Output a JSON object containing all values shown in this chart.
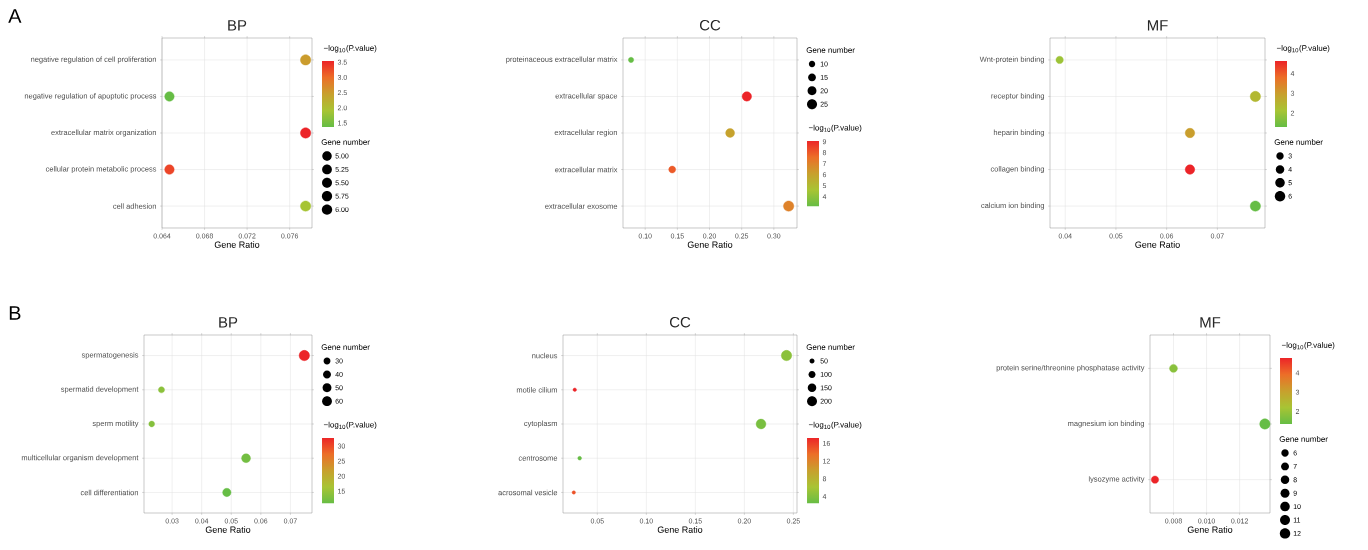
{
  "chart_data": [
    {
      "type": "bubble",
      "title": "BP",
      "xlabel": "Gene Ratio",
      "annotations": [
        "A"
      ],
      "orientation": "horizontal",
      "grid": true,
      "legend_title": "Gene number",
      "clabel": "−log$_{10}$(P.value)",
      "categories": [
        "negative regulation of cell proliferation",
        "negative regulation of apoptotic process",
        "extracellular matrix organization",
        "cellular protein metabolic process",
        "cell adhesion"
      ],
      "values": [
        0.0775,
        0.0647,
        0.0775,
        0.0647,
        0.0775
      ],
      "sizes": [
        6,
        5,
        6,
        5,
        6
      ],
      "cvalues": [
        2.5,
        1.37,
        3.54,
        3.3,
        1.9
      ],
      "clim": [
        1.37,
        3.54
      ],
      "cticks": [
        1.5,
        {
          "value": 2,
          "label": "2.0"
        },
        2.5,
        {
          "value": 3,
          "label": "3.0"
        },
        3.5
      ],
      "xlim": [
        0.064,
        0.0781
      ],
      "xticks": [
        0.064,
        0.068,
        0.072,
        0.076
      ],
      "size_legend": [
        {
          "value": 5,
          "label": "5.00"
        },
        5.25,
        {
          "value": 5.5,
          "label": "5.50"
        },
        5.75,
        {
          "value": 6,
          "label": "6.00"
        }
      ]
    },
    {
      "type": "bubble",
      "title": "CC",
      "xlabel": "Gene Ratio",
      "orientation": "horizontal",
      "grid": true,
      "legend_title": "Gene number",
      "clabel": "−log$_{10}$(P.value)",
      "categories": [
        "proteinaceous extracellular matrix",
        "extracellular space",
        "extracellular region",
        "extracellular matrix",
        "extracellular exosome"
      ],
      "values": [
        0.078,
        0.258,
        0.232,
        0.142,
        0.323
      ],
      "sizes": [
        7,
        22,
        20,
        12,
        27
      ],
      "cvalues": [
        3.1,
        9.1,
        6.0,
        8.0,
        7.0
      ],
      "clim": [
        3.1,
        9.1
      ],
      "cticks": [
        4,
        5,
        6,
        7,
        8,
        9
      ],
      "xlim": [
        0.0655,
        0.336
      ],
      "xticks": [
        {
          "value": 0.1,
          "label": "0.10"
        },
        0.15,
        {
          "value": 0.2,
          "label": "0.20"
        },
        0.25,
        {
          "value": 0.3,
          "label": "0.30"
        }
      ],
      "size_legend": [
        10,
        15,
        20,
        25
      ]
    },
    {
      "type": "bubble",
      "title": "MF",
      "xlabel": "Gene Ratio",
      "orientation": "horizontal",
      "grid": true,
      "legend_title": "Gene number",
      "clabel": "−log$_{10}$(P.value)",
      "categories": [
        "Wnt-protein binding",
        "receptor binding",
        "heparin binding",
        "collagen binding",
        "calcium ion binding"
      ],
      "values": [
        0.0389,
        0.0775,
        0.0646,
        0.0646,
        0.0775
      ],
      "sizes": [
        3,
        6,
        5,
        5,
        6
      ],
      "cvalues": [
        2.0,
        2.4,
        3.0,
        4.63,
        1.3
      ],
      "clim": [
        1.3,
        4.63
      ],
      "cticks": [
        2,
        3,
        4
      ],
      "xlim": [
        0.037,
        0.0794
      ],
      "xticks": [
        0.04,
        0.05,
        0.06,
        0.07
      ],
      "size_legend": [
        3,
        4,
        5,
        6
      ]
    },
    {
      "type": "bubble",
      "title": "BP",
      "xlabel": "Gene Ratio",
      "annotations": [
        "B"
      ],
      "orientation": "horizontal",
      "grid": true,
      "legend_title": "Gene number",
      "clabel": "−log$_{10}$(P.value)",
      "categories": [
        "spermatogenesis",
        "spermatid development",
        "sperm motility",
        "multicellular organism development",
        "cell differentiation"
      ],
      "values": [
        0.0747,
        0.0264,
        0.0231,
        0.055,
        0.0485
      ],
      "sizes": [
        68,
        24,
        21,
        50,
        44
      ],
      "cvalues": [
        32.8,
        14,
        13.5,
        12,
        10.9
      ],
      "clim": [
        10.9,
        32.8
      ],
      "cticks": [
        15,
        20,
        25,
        30
      ],
      "xlim": [
        0.0205,
        0.0773
      ],
      "xticks": [
        0.03,
        0.04,
        0.05,
        0.06,
        0.07
      ],
      "size_legend": [
        30,
        40,
        50,
        60
      ]
    },
    {
      "type": "bubble",
      "title": "CC",
      "xlabel": "Gene Ratio",
      "orientation": "horizontal",
      "grid": true,
      "legend_title": "Gene number",
      "clabel": "−log$_{10}$(P.value)",
      "categories": [
        "nucleus",
        "motile cilium",
        "cytoplasm",
        "centrosome",
        "acrosomal vesicle"
      ],
      "values": [
        0.243,
        0.027,
        0.217,
        0.032,
        0.026
      ],
      "sizes": [
        221,
        25,
        197,
        29,
        24
      ],
      "cvalues": [
        4.5,
        17.3,
        3.5,
        2.4,
        15
      ],
      "clim": [
        2.4,
        17.3
      ],
      "cticks": [
        4,
        8,
        12,
        16
      ],
      "xlim": [
        0.015,
        0.2537
      ],
      "xticks": [
        0.05,
        {
          "value": 0.1,
          "label": "0.10"
        },
        0.15,
        {
          "value": 0.2,
          "label": "0.20"
        },
        0.25
      ],
      "size_legend": [
        50,
        100,
        150,
        200
      ]
    },
    {
      "type": "bubble",
      "title": "MF",
      "xlabel": "Gene Ratio",
      "orientation": "horizontal",
      "grid": true,
      "legend_title": "Gene number",
      "clabel": "−log$_{10}$(P.value)",
      "categories": [
        "protein serine/threonine phosphatase activity",
        "magnesium ion binding",
        "lysozyme activity"
      ],
      "values": [
        0.008,
        0.01353,
        0.00688
      ],
      "sizes": [
        7,
        12,
        6
      ],
      "cvalues": [
        1.8,
        1.35,
        4.77
      ],
      "clim": [
        1.35,
        4.77
      ],
      "cticks": [
        2,
        3,
        4
      ],
      "xlim": [
        0.00658,
        0.01384
      ],
      "xticks": [
        0.008,
        {
          "value": 0.01,
          "label": "0.010"
        },
        0.012
      ],
      "size_legend": [
        6,
        7,
        8,
        9,
        10,
        11,
        12
      ]
    }
  ]
}
